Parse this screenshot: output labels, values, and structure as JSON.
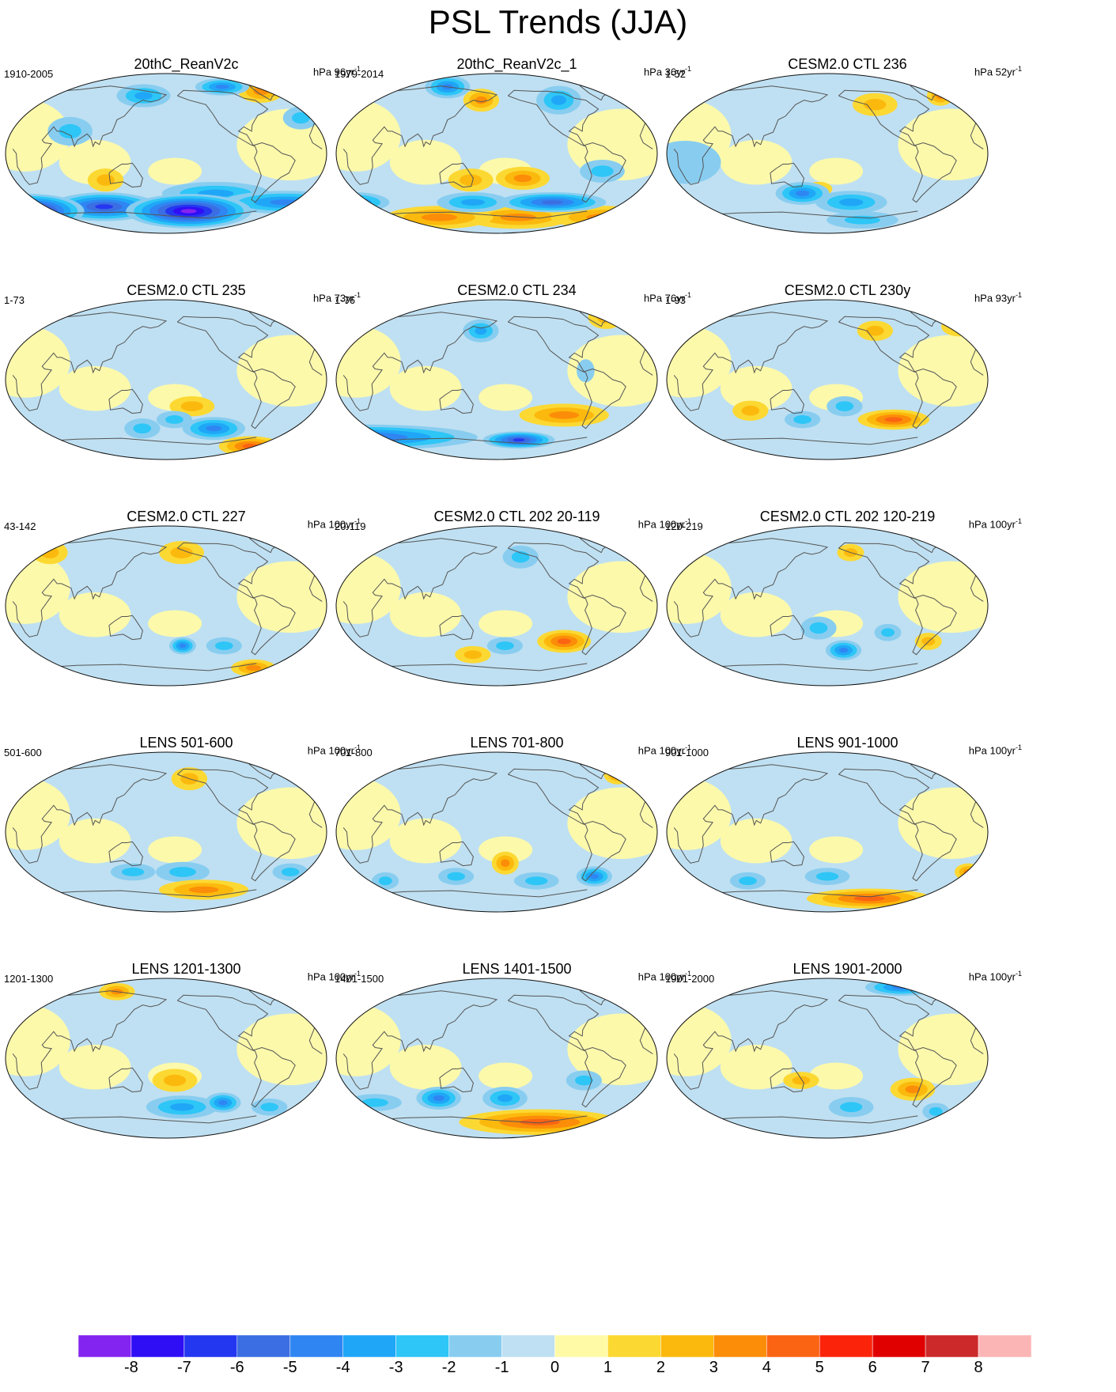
{
  "figure": {
    "title": "PSL Trends (JJA)"
  },
  "palette": {
    "ocean_fill": "#bfe0f2",
    "land_fill": "#fffaa6",
    "coast_color": "#555555",
    "border_color": "#111111"
  },
  "panels": [
    {
      "title": "20thC_ReanV2c",
      "left": "1910-2005",
      "unit": "hPa 96yr",
      "unit_sup": "-1",
      "blobs": [
        [
          -150,
          -65,
          70,
          12,
          -8
        ],
        [
          0,
          -65,
          60,
          12,
          -8
        ],
        [
          100,
          -60,
          60,
          10,
          -6
        ],
        [
          -30,
          -55,
          70,
          8,
          -4
        ],
        [
          -120,
          -45,
          60,
          8,
          -3
        ],
        [
          -50,
          70,
          25,
          8,
          3
        ],
        [
          -100,
          75,
          30,
          6,
          -4
        ],
        [
          150,
          65,
          30,
          8,
          -3
        ],
        [
          -20,
          40,
          20,
          8,
          -2
        ],
        [
          70,
          25,
          25,
          10,
          -2
        ],
        [
          110,
          -30,
          20,
          8,
          2
        ]
      ]
    },
    {
      "title": "20thC_ReanV2c_1",
      "left": "1979-2014",
      "unit": "hPa 36yr",
      "unit_sup": "-1",
      "blobs": [
        [
          -150,
          -72,
          60,
          8,
          3
        ],
        [
          -30,
          -72,
          60,
          8,
          3
        ],
        [
          100,
          -72,
          60,
          8,
          3
        ],
        [
          -110,
          -55,
          60,
          7,
          -5
        ],
        [
          0,
          -55,
          40,
          7,
          -4
        ],
        [
          150,
          -55,
          40,
          7,
          -3
        ],
        [
          -150,
          -28,
          30,
          8,
          3
        ],
        [
          150,
          -30,
          25,
          8,
          2
        ],
        [
          -60,
          -20,
          25,
          8,
          -2
        ],
        [
          110,
          75,
          25,
          8,
          -4
        ],
        [
          160,
          60,
          20,
          8,
          3
        ],
        [
          -100,
          60,
          25,
          10,
          -3
        ]
      ]
    },
    {
      "title": "CESM2.0 CTL 236",
      "left": "1-52",
      "unit": "hPa 52yr",
      "unit_sup": "-1",
      "blobs": [
        [
          -150,
          -55,
          40,
          8,
          -3
        ],
        [
          150,
          -45,
          30,
          8,
          -4
        ],
        [
          -130,
          -75,
          40,
          6,
          -2
        ],
        [
          170,
          -40,
          15,
          5,
          2
        ],
        [
          -120,
          55,
          25,
          8,
          2
        ],
        [
          -30,
          65,
          15,
          7,
          3
        ],
        [
          20,
          -10,
          40,
          15,
          -1
        ]
      ]
    },
    {
      "title": "CESM2.0 CTL 235",
      "left": "1-73",
      "unit": "hPa 73yr",
      "unit_sup": "-1",
      "blobs": [
        [
          -120,
          -55,
          35,
          8,
          -4
        ],
        [
          -150,
          -30,
          25,
          7,
          2
        ],
        [
          -60,
          -75,
          35,
          7,
          4
        ],
        [
          150,
          -55,
          20,
          7,
          -2
        ],
        [
          -170,
          -45,
          20,
          6,
          -2
        ]
      ]
    },
    {
      "title": "CESM2.0 CTL 234",
      "left": "1-76",
      "unit": "hPa 76yr",
      "unit_sup": "-1",
      "blobs": [
        [
          0,
          -65,
          130,
          9,
          -5
        ],
        [
          -150,
          -68,
          40,
          6,
          -6
        ],
        [
          -100,
          -40,
          50,
          8,
          3
        ],
        [
          160,
          55,
          20,
          8,
          -3
        ],
        [
          -30,
          70,
          20,
          8,
          2
        ],
        [
          -80,
          10,
          10,
          8,
          -1
        ]
      ]
    },
    {
      "title": "CESM2.0 CTL 230y",
      "left": "1-93",
      "unit": "hPa 93yr",
      "unit_sup": "-1",
      "blobs": [
        [
          -100,
          -45,
          40,
          7,
          4
        ],
        [
          -160,
          -30,
          20,
          7,
          -2
        ],
        [
          150,
          -45,
          20,
          6,
          -2
        ],
        [
          -120,
          55,
          20,
          7,
          2
        ],
        [
          -10,
          60,
          20,
          7,
          2
        ],
        [
          90,
          -35,
          20,
          7,
          2
        ]
      ]
    },
    {
      "title": "CESM2.0 CTL 227",
      "left": "43-142",
      "unit": "hPa 100yr",
      "unit_sup": "-1",
      "blobs": [
        [
          -160,
          -45,
          15,
          6,
          -4
        ],
        [
          -60,
          -70,
          25,
          6,
          3
        ],
        [
          -110,
          -45,
          20,
          6,
          -2
        ],
        [
          30,
          60,
          20,
          8,
          2
        ],
        [
          -160,
          60,
          25,
          8,
          2
        ]
      ]
    },
    {
      "title": "CESM2.0 CTL 202 20-119",
      "left": "20-119",
      "unit": "hPa 100yr",
      "unit_sup": "-1",
      "blobs": [
        [
          -100,
          -40,
          30,
          8,
          4
        ],
        [
          -170,
          -45,
          20,
          6,
          -2
        ],
        [
          150,
          -55,
          20,
          6,
          2
        ],
        [
          -150,
          55,
          20,
          8,
          -2
        ]
      ]
    },
    {
      "title": "CESM2.0 CTL 202 120-219",
      "left": "120-219",
      "unit": "hPa 100yr",
      "unit_sup": "-1",
      "blobs": [
        [
          -160,
          -50,
          20,
          7,
          -4
        ],
        [
          -110,
          -30,
          15,
          6,
          -2
        ],
        [
          -60,
          -40,
          15,
          6,
          2
        ],
        [
          170,
          -25,
          20,
          8,
          -2
        ],
        [
          -150,
          60,
          15,
          6,
          2
        ]
      ]
    },
    {
      "title": "LENS 501-600",
      "left": "501-600",
      "unit": "hPa 100yr",
      "unit_sup": "-1",
      "blobs": [
        [
          -130,
          -65,
          50,
          7,
          3
        ],
        [
          -160,
          -45,
          30,
          7,
          -2
        ],
        [
          -30,
          -45,
          20,
          6,
          -2
        ],
        [
          140,
          -45,
          25,
          6,
          -2
        ],
        [
          -150,
          60,
          20,
          8,
          2
        ]
      ]
    },
    {
      "title": "LENS 701-800",
      "left": "701-800",
      "unit": "hPa 100yr",
      "unit_sup": "-1",
      "blobs": [
        [
          -170,
          -35,
          15,
          8,
          3
        ],
        [
          -60,
          -50,
          20,
          7,
          -4
        ],
        [
          130,
          -50,
          20,
          6,
          -2
        ],
        [
          -130,
          -55,
          25,
          6,
          -2
        ],
        [
          -20,
          65,
          15,
          7,
          3
        ],
        [
          40,
          -55,
          15,
          6,
          -2
        ]
      ]
    },
    {
      "title": "LENS 901-1000",
      "left": "901-1000",
      "unit": "hPa 100yr",
      "unit_sup": "-1",
      "blobs": [
        [
          -120,
          -75,
          70,
          7,
          4
        ],
        [
          -10,
          -45,
          15,
          6,
          3
        ],
        [
          -180,
          -50,
          25,
          6,
          -2
        ],
        [
          80,
          -55,
          20,
          6,
          -2
        ]
      ]
    },
    {
      "title": "LENS 1201-1300",
      "left": "1201-1300",
      "unit": "hPa 100yr",
      "unit_sup": "-1",
      "blobs": [
        [
          -160,
          -55,
          40,
          8,
          -3
        ],
        [
          -110,
          -50,
          20,
          7,
          -4
        ],
        [
          -170,
          -25,
          25,
          8,
          2
        ],
        [
          -50,
          -55,
          20,
          6,
          -2
        ],
        [
          110,
          75,
          20,
          6,
          3
        ]
      ]
    },
    {
      "title": "LENS 1401-1500",
      "left": "1401-1500",
      "unit": "hPa 100yr",
      "unit_sup": "-1",
      "blobs": [
        [
          -120,
          -72,
          90,
          9,
          4
        ],
        [
          -170,
          -45,
          25,
          8,
          -3
        ],
        [
          110,
          -45,
          25,
          8,
          -4
        ],
        [
          30,
          -50,
          30,
          6,
          -2
        ],
        [
          -80,
          -25,
          20,
          7,
          -2
        ]
      ]
    },
    {
      "title": "LENS 1901-2000",
      "left": "1901-2000",
      "unit": "hPa 100yr",
      "unit_sup": "-1",
      "blobs": [
        [
          -80,
          -35,
          25,
          8,
          3
        ],
        [
          -150,
          -55,
          25,
          7,
          -2
        ],
        [
          -40,
          -60,
          15,
          6,
          -2
        ],
        [
          -70,
          80,
          40,
          6,
          -4
        ],
        [
          150,
          -25,
          20,
          6,
          2
        ]
      ]
    }
  ],
  "colorbar": {
    "labels": [
      "-8",
      "-7",
      "-6",
      "-5",
      "-4",
      "-3",
      "-2",
      "-1",
      "0",
      "1",
      "2",
      "3",
      "4",
      "5",
      "6",
      "7",
      "8"
    ],
    "colors": [
      "#8424f0",
      "#2f0ef5",
      "#2437f0",
      "#3b6ee2",
      "#2f86f2",
      "#20a6f7",
      "#2dc6f7",
      "#88cdf0",
      "#bfe0f2",
      "#fffaa6",
      "#fcd832",
      "#fcb90d",
      "#fc8d08",
      "#fb6412",
      "#fb240b",
      "#e00000",
      "#cc2a2a",
      "#fcb5b5"
    ]
  }
}
